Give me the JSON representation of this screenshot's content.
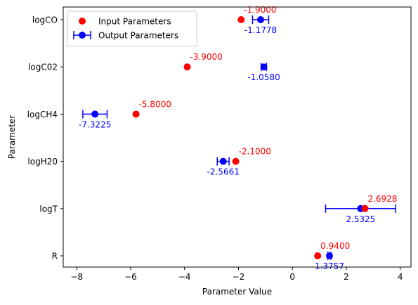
{
  "chart_data": {
    "type": "scatter",
    "xlabel": "Parameter Value",
    "ylabel": "Parameter",
    "xlim": [
      -8.5,
      4.4
    ],
    "xticks": [
      -8,
      -6,
      -4,
      -2,
      0,
      2,
      4
    ],
    "xtick_labels": [
      "−8",
      "−6",
      "−4",
      "−2",
      "0",
      "2",
      "4"
    ],
    "categories": [
      "logCO",
      "logC02",
      "logCH4",
      "logH20",
      "logT",
      "R"
    ],
    "grid": false,
    "legend_position": "top-left",
    "series": [
      {
        "name": "Input Parameters",
        "color": "#ff0000",
        "points": [
          {
            "category": "logCO",
            "x": -1.9,
            "label": "-1.9000"
          },
          {
            "category": "logC02",
            "x": -3.9,
            "label": "-3.9000"
          },
          {
            "category": "logCH4",
            "x": -5.8,
            "label": "-5.8000"
          },
          {
            "category": "logH20",
            "x": -2.1,
            "label": "-2.1000"
          },
          {
            "category": "logT",
            "x": 2.6928,
            "label": "2.6928"
          },
          {
            "category": "R",
            "x": 0.94,
            "label": "0.9400"
          }
        ]
      },
      {
        "name": "Output Parameters",
        "color": "#0000ff",
        "points": [
          {
            "category": "logCO",
            "x": -1.1778,
            "xerr": 0.3,
            "label": "-1.1778"
          },
          {
            "category": "logC02",
            "x": -1.058,
            "xerr": 0.1,
            "label": "-1.0580"
          },
          {
            "category": "logCH4",
            "x": -7.3225,
            "xerr": 0.45,
            "label": "-7.3225"
          },
          {
            "category": "logH20",
            "x": -2.5661,
            "xerr": 0.22,
            "label": "-2.5661"
          },
          {
            "category": "logT",
            "x": 2.5325,
            "xerr": 1.3,
            "label": "2.5325"
          },
          {
            "category": "R",
            "x": 1.3757,
            "xerr": 0.06,
            "label": "1.3757"
          }
        ]
      }
    ]
  }
}
